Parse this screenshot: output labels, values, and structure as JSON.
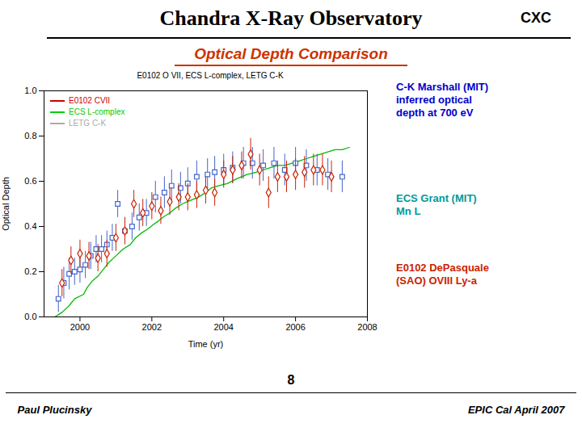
{
  "chart_data": {
    "type": "line",
    "title": "Chandra X-Ray Observatory",
    "corner_label": "CXC",
    "subtitle": "Optical Depth Comparison",
    "subtitle_color": "#cc3300",
    "plot_title": "E0102 O VII, ECS L-complex, LETG C-K",
    "x_label": "Time (yr)",
    "y_label": "Optical Depth",
    "xlim": [
      1999,
      2008
    ],
    "ylim": [
      0,
      1
    ],
    "xticks": [
      2000,
      2002,
      2004,
      2006,
      2008
    ],
    "yticks": [
      {
        "value": 0,
        "label": "0.0"
      },
      0.2,
      0.4,
      0.6,
      0.8,
      {
        "value": 1,
        "label": "1.0"
      }
    ],
    "grid": false,
    "legend": "upper left",
    "legend_entries": [
      {
        "name": "E0102 CVII",
        "color": "#cc0000"
      },
      {
        "name": "ECS L-complex",
        "color": "#00cc00"
      },
      {
        "name": "LETG C-K",
        "color": "#aaaaaa"
      }
    ],
    "series": [
      {
        "type": "line",
        "color": "#00bb00",
        "line_style": "solid",
        "x": [
          1999.3,
          1999.5,
          1999.7,
          1999.85,
          2000.1,
          2000.2,
          2000.35,
          2000.5,
          2000.65,
          2000.8,
          2001.0,
          2001.2,
          2001.4,
          2001.55,
          2001.7,
          2001.9,
          2002.05,
          2002.15,
          2002.3,
          2002.5,
          2002.65,
          2002.85,
          2003.0,
          2003.15,
          2003.3,
          2003.5,
          2003.65,
          2003.85,
          2004.1,
          2004.35,
          2004.5,
          2004.65,
          2004.9,
          2005.1,
          2005.3,
          2005.5,
          2005.7,
          2005.9,
          2006.1,
          2006.3,
          2006.5,
          2006.7,
          2006.9,
          2007.1,
          2007.3,
          2007.5
        ],
        "values": [
          0.0,
          0.02,
          0.05,
          0.08,
          0.1,
          0.13,
          0.16,
          0.18,
          0.21,
          0.24,
          0.27,
          0.3,
          0.32,
          0.35,
          0.37,
          0.39,
          0.41,
          0.42,
          0.44,
          0.46,
          0.48,
          0.5,
          0.51,
          0.52,
          0.53,
          0.55,
          0.57,
          0.58,
          0.59,
          0.61,
          0.62,
          0.63,
          0.64,
          0.65,
          0.66,
          0.67,
          0.67,
          0.68,
          0.69,
          0.7,
          0.71,
          0.72,
          0.73,
          0.74,
          0.74,
          0.75
        ]
      },
      {
        "type": "scatter",
        "color": "#4466cc",
        "marker": "square",
        "x": [
          1999.4,
          1999.55,
          1999.7,
          1999.85,
          2000.0,
          2000.15,
          2000.3,
          2000.45,
          2000.6,
          2000.75,
          2000.9,
          2001.05,
          2001.25,
          2001.45,
          2001.65,
          2001.85,
          2002.1,
          2002.35,
          2002.55,
          2002.8,
          2003.0,
          2003.25,
          2003.55,
          2003.75,
          2004.0,
          2004.25,
          2004.55,
          2004.8,
          2005.1,
          2005.4,
          2005.7,
          2006.0,
          2006.3,
          2006.6,
          2006.9,
          2007.3
        ],
        "values": [
          0.08,
          0.15,
          0.19,
          0.2,
          0.21,
          0.23,
          0.27,
          0.3,
          0.3,
          0.32,
          0.35,
          0.5,
          0.38,
          0.4,
          0.44,
          0.46,
          0.53,
          0.55,
          0.58,
          0.57,
          0.59,
          0.62,
          0.63,
          0.64,
          0.65,
          0.66,
          0.68,
          0.68,
          0.67,
          0.68,
          0.65,
          0.68,
          0.67,
          0.65,
          0.63,
          0.62
        ],
        "errors": [
          0.06,
          0.07,
          0.07,
          0.06,
          0.06,
          0.06,
          0.06,
          0.06,
          0.06,
          0.06,
          0.06,
          0.06,
          0.06,
          0.06,
          0.06,
          0.06,
          0.07,
          0.07,
          0.07,
          0.07,
          0.07,
          0.07,
          0.07,
          0.07,
          0.07,
          0.07,
          0.07,
          0.07,
          0.07,
          0.07,
          0.07,
          0.07,
          0.07,
          0.07,
          0.07,
          0.07
        ]
      },
      {
        "type": "scatter",
        "color": "#cc2200",
        "marker": "diamond",
        "x": [
          1999.5,
          1999.75,
          2000.0,
          2000.25,
          2000.5,
          2000.75,
          2001.0,
          2001.25,
          2001.5,
          2001.75,
          2002.0,
          2002.25,
          2002.5,
          2002.75,
          2003.0,
          2003.25,
          2003.5,
          2003.75,
          2004.0,
          2004.25,
          2004.5,
          2004.75,
          2005.0,
          2005.25,
          2005.5,
          2005.75,
          2006.0,
          2006.25,
          2006.5,
          2006.75,
          2007.0
        ],
        "values": [
          0.15,
          0.25,
          0.28,
          0.27,
          0.26,
          0.28,
          0.35,
          0.38,
          0.5,
          0.46,
          0.49,
          0.47,
          0.51,
          0.53,
          0.53,
          0.54,
          0.56,
          0.55,
          0.63,
          0.65,
          0.67,
          0.72,
          0.65,
          0.55,
          0.62,
          0.62,
          0.63,
          0.64,
          0.65,
          0.65,
          0.62
        ],
        "errors": [
          0.06,
          0.06,
          0.06,
          0.06,
          0.06,
          0.06,
          0.06,
          0.06,
          0.06,
          0.06,
          0.06,
          0.06,
          0.06,
          0.06,
          0.06,
          0.06,
          0.06,
          0.06,
          0.06,
          0.06,
          0.06,
          0.07,
          0.07,
          0.07,
          0.07,
          0.07,
          0.07,
          0.07,
          0.07,
          0.07,
          0.07
        ]
      }
    ],
    "annotations": [
      {
        "text": "C-K Marshall (MIT)\ninferred optical\ndepth at 700 eV",
        "color": "#0000cc"
      },
      {
        "text": "ECS Grant (MIT)\nMn L",
        "color": "#009999"
      },
      {
        "text": "E0102 DePasquale\n(SAO) OVIII Ly-a",
        "color": "#cc2200"
      }
    ],
    "footer_left": "Paul Plucinsky",
    "footer_center": "8",
    "footer_right": "EPIC Cal April 2007"
  }
}
